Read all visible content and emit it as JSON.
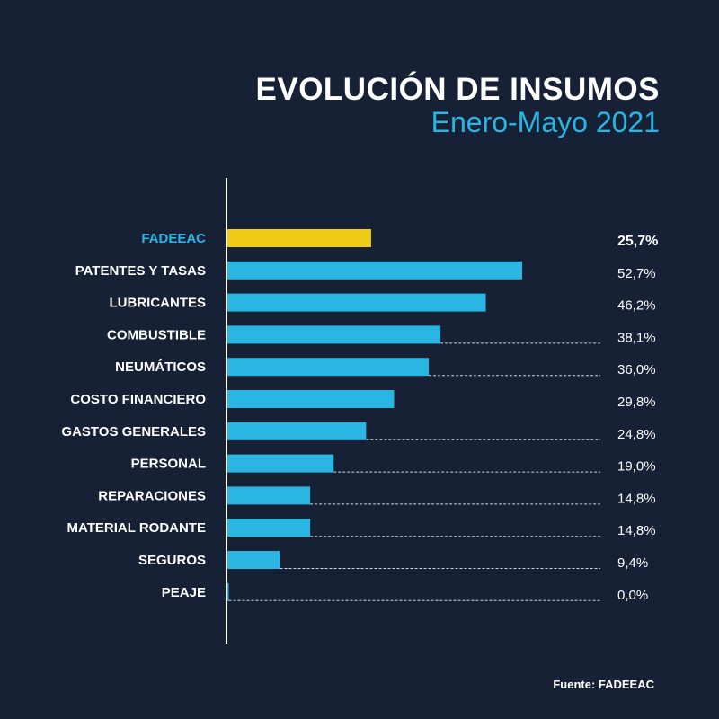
{
  "chart_data": {
    "type": "bar",
    "orientation": "horizontal",
    "title": "EVOLUCIÓN DE INSUMOS",
    "subtitle": "Enero-Mayo 2021",
    "source": "Fuente: FADEEAC",
    "categories": [
      "FADEEAC",
      "PATENTES Y TASAS",
      "LUBRICANTES",
      "COMBUSTIBLE",
      "NEUMÁTICOS",
      "COSTO FINANCIERO",
      "GASTOS GENERALES",
      "PERSONAL",
      "REPARACIONES",
      "MATERIAL RODANTE",
      "SEGUROS",
      "PEAJE"
    ],
    "values": [
      25.7,
      52.7,
      46.2,
      38.1,
      36.0,
      29.8,
      24.8,
      19.0,
      14.8,
      14.8,
      9.4,
      0.0
    ],
    "value_labels": [
      "25,7%",
      "52,7%",
      "46,2%",
      "38,1%",
      "36,0%",
      "29,8%",
      "24,8%",
      "19,0%",
      "14,8%",
      "14,8%",
      "9,4%",
      "0,0%"
    ],
    "highlight_category": "FADEEAC",
    "colors": {
      "background": "#172136",
      "bar": "#29b6e3",
      "highlight": "#f0cb16",
      "text": "#ffffff",
      "highlight_label": "#29b6e3"
    },
    "grid": false
  }
}
